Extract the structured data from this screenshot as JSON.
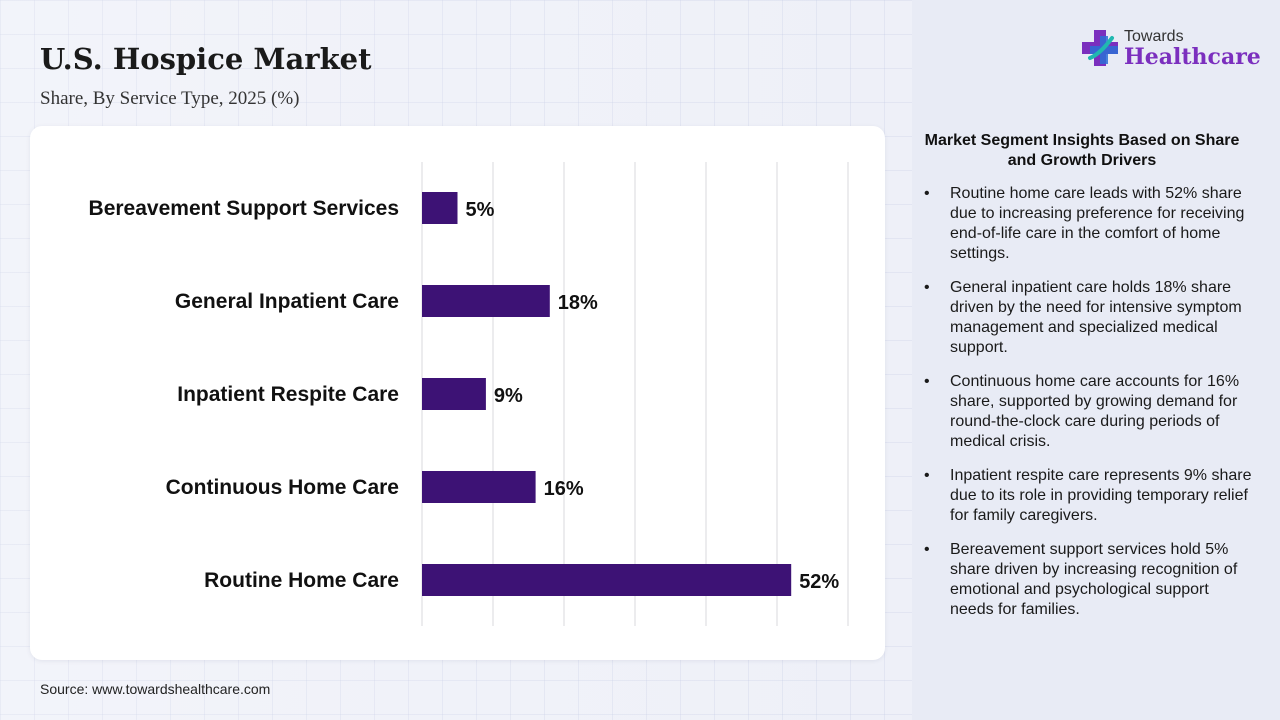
{
  "header": {
    "title": "U.S. Hospice Market",
    "subtitle": "Share, By Service Type, 2025 (%)"
  },
  "logo": {
    "top_text": "Towards",
    "main_text": "Healthcare",
    "icon": "medical-cross-icon",
    "colors": {
      "purple": "#7b2fbe",
      "blue": "#2d6fd6",
      "teal": "#20b8b0"
    }
  },
  "chart_data": {
    "type": "bar",
    "orientation": "horizontal",
    "categories": [
      "Bereavement Support Services",
      "General Inpatient Care",
      "Inpatient Respite Care",
      "Continuous Home Care",
      "Routine Home Care"
    ],
    "values": [
      5,
      18,
      9,
      16,
      52
    ],
    "data_labels": [
      "5%",
      "18%",
      "9%",
      "16%",
      "52%"
    ],
    "unit": "%",
    "xlim": [
      0,
      60
    ],
    "grid": true,
    "bar_color": "#3d1275"
  },
  "insights": {
    "title": "Market Segment Insights Based on Share and Growth Drivers",
    "items": [
      "Routine home care leads with 52% share due to increasing preference for receiving end-of-life care in the comfort of home settings.",
      "General inpatient care holds 18% share driven by the need for intensive symptom management and specialized medical support.",
      "Continuous home care accounts for 16% share, supported by growing demand for round-the-clock care during periods of medical crisis.",
      "Inpatient respite care represents 9% share due to its role in providing temporary relief for family caregivers.",
      "Bereavement support services hold 5% share driven by increasing recognition of emotional and psychological support needs for families."
    ]
  },
  "footer": {
    "source": "Source: www.towardshealthcare.com"
  }
}
